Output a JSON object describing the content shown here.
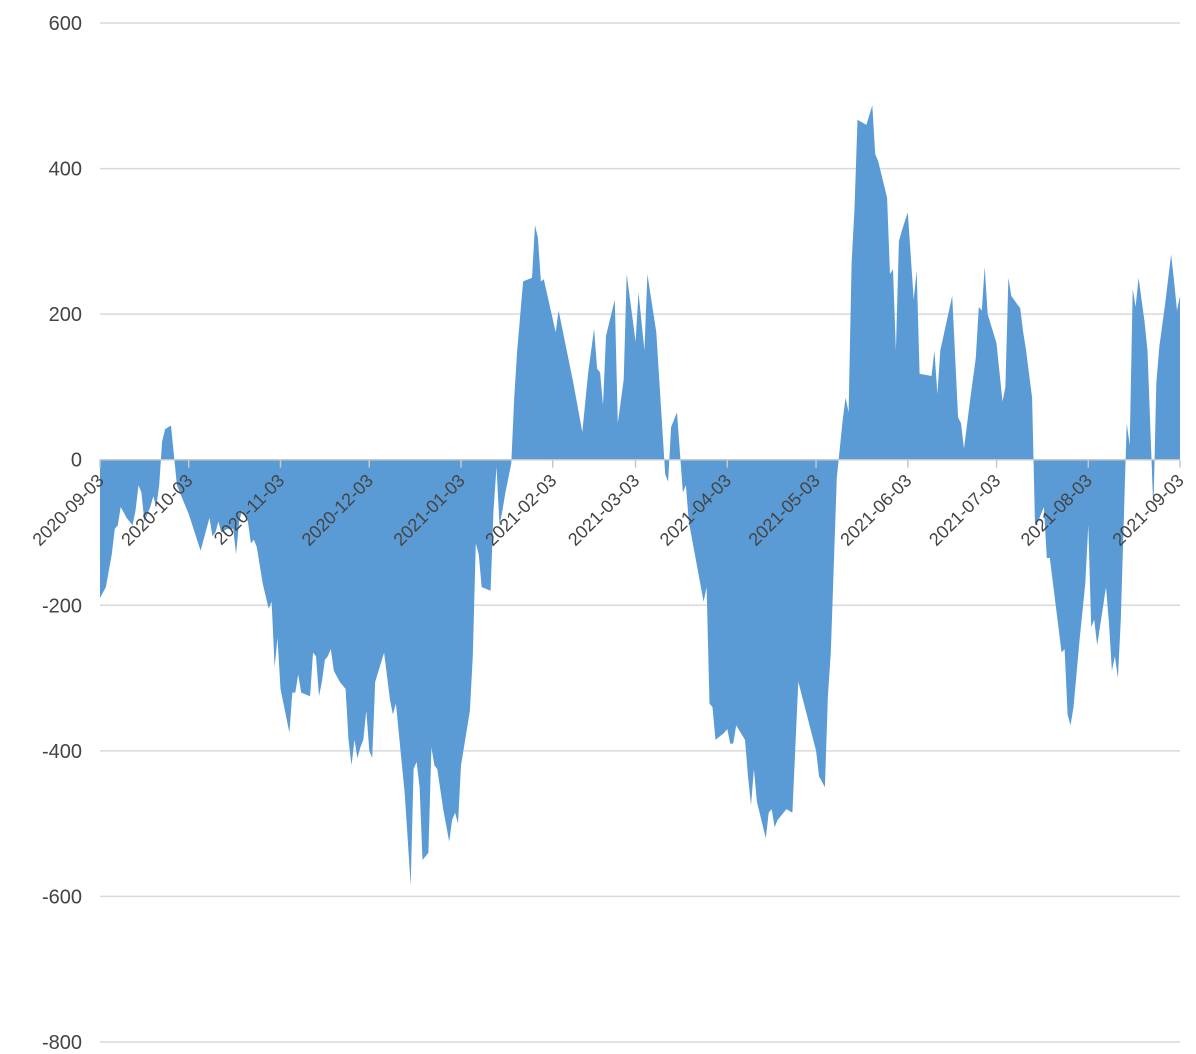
{
  "chart_data": {
    "type": "area",
    "title": "",
    "xlabel": "",
    "ylabel": "",
    "x_start": "2020-09-03",
    "x_end": "2021-09-03",
    "ylim": [
      -800,
      600
    ],
    "y_ticks": [
      600,
      400,
      200,
      0,
      -200,
      -400,
      -600,
      -800
    ],
    "x_ticks": [
      "2020-09-03",
      "2020-10-03",
      "2020-11-03",
      "2020-12-03",
      "2021-01-03",
      "2021-02-03",
      "2021-03-03",
      "2021-04-03",
      "2021-05-03",
      "2021-06-03",
      "2021-07-03",
      "2021-08-03",
      "2021-09-03"
    ],
    "grid": true,
    "legend": "none",
    "fill_color": "#5b9bd5",
    "series": [
      {
        "values": [
          [
            "2020-09-03",
            -190
          ],
          [
            "2020-09-05",
            -175
          ],
          [
            "2020-09-07",
            -130
          ],
          [
            "2020-09-08",
            -95
          ],
          [
            "2020-09-09",
            -90
          ],
          [
            "2020-09-10",
            -65
          ],
          [
            "2020-09-12",
            -80
          ],
          [
            "2020-09-14",
            -90
          ],
          [
            "2020-09-15",
            -70
          ],
          [
            "2020-09-16",
            -35
          ],
          [
            "2020-09-17",
            -45
          ],
          [
            "2020-09-18",
            -85
          ],
          [
            "2020-09-20",
            -65
          ],
          [
            "2020-09-21",
            -50
          ],
          [
            "2020-09-22",
            -65
          ],
          [
            "2020-09-23",
            -35
          ],
          [
            "2020-09-24",
            25
          ],
          [
            "2020-09-25",
            42
          ],
          [
            "2020-09-27",
            47
          ],
          [
            "2020-09-29",
            -35
          ],
          [
            "2020-10-01",
            -55
          ],
          [
            "2020-10-03",
            -75
          ],
          [
            "2020-10-07",
            -125
          ],
          [
            "2020-10-09",
            -95
          ],
          [
            "2020-10-10",
            -80
          ],
          [
            "2020-10-11",
            -105
          ],
          [
            "2020-10-12",
            -100
          ],
          [
            "2020-10-13",
            -85
          ],
          [
            "2020-10-14",
            -100
          ],
          [
            "2020-10-16",
            -95
          ],
          [
            "2020-10-18",
            -95
          ],
          [
            "2020-10-19",
            -130
          ],
          [
            "2020-10-20",
            -85
          ],
          [
            "2020-10-21",
            -70
          ],
          [
            "2020-10-23",
            -85
          ],
          [
            "2020-10-24",
            -115
          ],
          [
            "2020-10-25",
            -110
          ],
          [
            "2020-10-26",
            -120
          ],
          [
            "2020-10-28",
            -170
          ],
          [
            "2020-10-30",
            -205
          ],
          [
            "2020-10-31",
            -195
          ],
          [
            "2020-11-01",
            -285
          ],
          [
            "2020-11-02",
            -245
          ],
          [
            "2020-11-03",
            -315
          ],
          [
            "2020-11-06",
            -375
          ],
          [
            "2020-11-07",
            -320
          ],
          [
            "2020-11-08",
            -320
          ],
          [
            "2020-11-09",
            -295
          ],
          [
            "2020-11-10",
            -320
          ],
          [
            "2020-11-13",
            -325
          ],
          [
            "2020-11-14",
            -265
          ],
          [
            "2020-11-15",
            -270
          ],
          [
            "2020-11-16",
            -325
          ],
          [
            "2020-11-17",
            -305
          ],
          [
            "2020-11-18",
            -275
          ],
          [
            "2020-11-19",
            -270
          ],
          [
            "2020-11-20",
            -260
          ],
          [
            "2020-11-21",
            -290
          ],
          [
            "2020-11-23",
            -305
          ],
          [
            "2020-11-25",
            -315
          ],
          [
            "2020-11-26",
            -385
          ],
          [
            "2020-11-27",
            -420
          ],
          [
            "2020-11-28",
            -385
          ],
          [
            "2020-11-29",
            -410
          ],
          [
            "2020-11-30",
            -395
          ],
          [
            "2020-12-01",
            -385
          ],
          [
            "2020-12-02",
            -345
          ],
          [
            "2020-12-03",
            -400
          ],
          [
            "2020-12-04",
            -410
          ],
          [
            "2020-12-05",
            -305
          ],
          [
            "2020-12-08",
            -265
          ],
          [
            "2020-12-10",
            -330
          ],
          [
            "2020-12-11",
            -350
          ],
          [
            "2020-12-12",
            -335
          ],
          [
            "2020-12-15",
            -460
          ],
          [
            "2020-12-17",
            -585
          ],
          [
            "2020-12-18",
            -425
          ],
          [
            "2020-12-19",
            -415
          ],
          [
            "2020-12-20",
            -450
          ],
          [
            "2020-12-21",
            -550
          ],
          [
            "2020-12-22",
            -545
          ],
          [
            "2020-12-23",
            -540
          ],
          [
            "2020-12-24",
            -395
          ],
          [
            "2020-12-25",
            -420
          ],
          [
            "2020-12-26",
            -425
          ],
          [
            "2020-12-28",
            -480
          ],
          [
            "2020-12-30",
            -525
          ],
          [
            "2020-12-31",
            -495
          ],
          [
            "2021-01-01",
            -485
          ],
          [
            "2021-01-02",
            -500
          ],
          [
            "2021-01-03",
            -420
          ],
          [
            "2021-01-06",
            -345
          ],
          [
            "2021-01-07",
            -270
          ],
          [
            "2021-01-08",
            -115
          ],
          [
            "2021-01-09",
            -130
          ],
          [
            "2021-01-10",
            -175
          ],
          [
            "2021-01-13",
            -180
          ],
          [
            "2021-01-14",
            -70
          ],
          [
            "2021-01-15",
            -10
          ],
          [
            "2021-01-16",
            -90
          ],
          [
            "2021-01-17",
            -70
          ],
          [
            "2021-01-18",
            -45
          ],
          [
            "2021-01-20",
            -5
          ],
          [
            "2021-01-21",
            85
          ],
          [
            "2021-01-22",
            150
          ],
          [
            "2021-01-24",
            245
          ],
          [
            "2021-01-27",
            250
          ],
          [
            "2021-01-28",
            322
          ],
          [
            "2021-01-29",
            305
          ],
          [
            "2021-01-30",
            245
          ],
          [
            "2021-01-31",
            248
          ],
          [
            "2021-02-04",
            175
          ],
          [
            "2021-02-05",
            205
          ],
          [
            "2021-02-10",
            105
          ],
          [
            "2021-02-13",
            38
          ],
          [
            "2021-02-15",
            120
          ],
          [
            "2021-02-17",
            180
          ],
          [
            "2021-02-18",
            125
          ],
          [
            "2021-02-19",
            120
          ],
          [
            "2021-02-20",
            75
          ],
          [
            "2021-02-21",
            170
          ],
          [
            "2021-02-24",
            220
          ],
          [
            "2021-02-25",
            50
          ],
          [
            "2021-02-27",
            110
          ],
          [
            "2021-02-28",
            255
          ],
          [
            "2021-03-03",
            162
          ],
          [
            "2021-03-04",
            230
          ],
          [
            "2021-03-06",
            150
          ],
          [
            "2021-03-07",
            255
          ],
          [
            "2021-03-10",
            175
          ],
          [
            "2021-03-13",
            -20
          ],
          [
            "2021-03-14",
            -30
          ],
          [
            "2021-03-15",
            45
          ],
          [
            "2021-03-17",
            65
          ],
          [
            "2021-03-18",
            10
          ],
          [
            "2021-03-19",
            -45
          ],
          [
            "2021-03-20",
            -35
          ],
          [
            "2021-03-21",
            -85
          ],
          [
            "2021-03-26",
            -195
          ],
          [
            "2021-03-27",
            -175
          ],
          [
            "2021-03-28",
            -335
          ],
          [
            "2021-03-29",
            -340
          ],
          [
            "2021-03-30",
            -385
          ],
          [
            "2021-04-02",
            -375
          ],
          [
            "2021-04-03",
            -370
          ],
          [
            "2021-04-04",
            -390
          ],
          [
            "2021-04-05",
            -390
          ],
          [
            "2021-04-06",
            -365
          ],
          [
            "2021-04-09",
            -385
          ],
          [
            "2021-04-10",
            -435
          ],
          [
            "2021-04-11",
            -475
          ],
          [
            "2021-04-12",
            -425
          ],
          [
            "2021-04-13",
            -470
          ],
          [
            "2021-04-16",
            -520
          ],
          [
            "2021-04-17",
            -485
          ],
          [
            "2021-04-18",
            -480
          ],
          [
            "2021-04-19",
            -505
          ],
          [
            "2021-04-20",
            -495
          ],
          [
            "2021-04-22",
            -485
          ],
          [
            "2021-04-23",
            -480
          ],
          [
            "2021-04-25",
            -485
          ],
          [
            "2021-04-27",
            -305
          ],
          [
            "2021-05-03",
            -400
          ],
          [
            "2021-05-04",
            -435
          ],
          [
            "2021-05-06",
            -450
          ],
          [
            "2021-05-07",
            -325
          ],
          [
            "2021-05-08",
            -265
          ],
          [
            "2021-05-10",
            -25
          ],
          [
            "2021-05-12",
            55
          ],
          [
            "2021-05-13",
            85
          ],
          [
            "2021-05-14",
            65
          ],
          [
            "2021-05-15",
            270
          ],
          [
            "2021-05-16",
            345
          ],
          [
            "2021-05-17",
            467
          ],
          [
            "2021-05-20",
            460
          ],
          [
            "2021-05-22",
            487
          ],
          [
            "2021-05-23",
            420
          ],
          [
            "2021-05-24",
            410
          ],
          [
            "2021-05-27",
            360
          ],
          [
            "2021-05-28",
            255
          ],
          [
            "2021-05-29",
            262
          ],
          [
            "2021-05-30",
            150
          ],
          [
            "2021-05-31",
            300
          ],
          [
            "2021-06-01",
            315
          ],
          [
            "2021-06-03",
            340
          ],
          [
            "2021-06-05",
            220
          ],
          [
            "2021-06-06",
            260
          ],
          [
            "2021-06-07",
            118
          ],
          [
            "2021-06-11",
            115
          ],
          [
            "2021-06-12",
            150
          ],
          [
            "2021-06-13",
            90
          ],
          [
            "2021-06-14",
            150
          ],
          [
            "2021-06-18",
            225
          ],
          [
            "2021-06-20",
            58
          ],
          [
            "2021-06-21",
            50
          ],
          [
            "2021-06-22",
            15
          ],
          [
            "2021-06-24",
            80
          ],
          [
            "2021-06-26",
            140
          ],
          [
            "2021-06-27",
            210
          ],
          [
            "2021-06-28",
            205
          ],
          [
            "2021-06-29",
            265
          ],
          [
            "2021-06-30",
            200
          ],
          [
            "2021-07-03",
            160
          ],
          [
            "2021-07-05",
            80
          ],
          [
            "2021-07-06",
            100
          ],
          [
            "2021-07-07",
            250
          ],
          [
            "2021-07-08",
            225
          ],
          [
            "2021-07-11",
            208
          ],
          [
            "2021-07-12",
            175
          ],
          [
            "2021-07-13",
            150
          ],
          [
            "2021-07-15",
            85
          ],
          [
            "2021-07-16",
            -90
          ],
          [
            "2021-07-17",
            -85
          ],
          [
            "2021-07-19",
            -65
          ],
          [
            "2021-07-20",
            -135
          ],
          [
            "2021-07-21",
            -135
          ],
          [
            "2021-07-25",
            -265
          ],
          [
            "2021-07-26",
            -260
          ],
          [
            "2021-07-27",
            -350
          ],
          [
            "2021-07-28",
            -365
          ],
          [
            "2021-07-29",
            -340
          ],
          [
            "2021-07-31",
            -250
          ],
          [
            "2021-08-02",
            -170
          ],
          [
            "2021-08-03",
            -90
          ],
          [
            "2021-08-04",
            -230
          ],
          [
            "2021-08-05",
            -220
          ],
          [
            "2021-08-06",
            -255
          ],
          [
            "2021-08-09",
            -175
          ],
          [
            "2021-08-10",
            -225
          ],
          [
            "2021-08-11",
            -290
          ],
          [
            "2021-08-12",
            -270
          ],
          [
            "2021-08-13",
            -300
          ],
          [
            "2021-08-14",
            -220
          ],
          [
            "2021-08-16",
            50
          ],
          [
            "2021-08-17",
            20
          ],
          [
            "2021-08-18",
            235
          ],
          [
            "2021-08-19",
            210
          ],
          [
            "2021-08-20",
            250
          ],
          [
            "2021-08-22",
            190
          ],
          [
            "2021-08-23",
            150
          ],
          [
            "2021-08-25",
            -70
          ],
          [
            "2021-08-26",
            105
          ],
          [
            "2021-08-27",
            155
          ],
          [
            "2021-08-29",
            215
          ],
          [
            "2021-08-31",
            282
          ],
          [
            "2021-09-01",
            245
          ],
          [
            "2021-09-02",
            205
          ],
          [
            "2021-09-03",
            225
          ]
        ]
      }
    ]
  }
}
